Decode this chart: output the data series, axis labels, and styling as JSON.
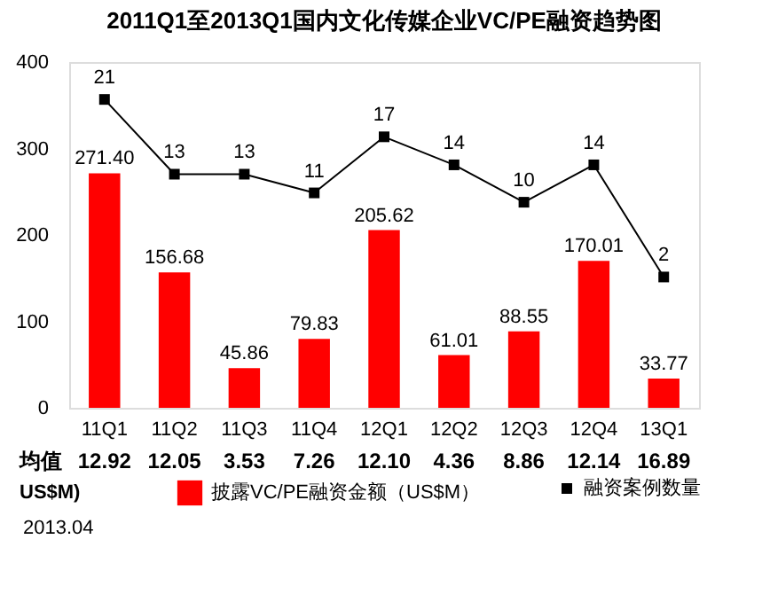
{
  "chart_data": {
    "type": "bar",
    "title": "2011Q1至2013Q1国内文化传媒企业VC/PE融资趋势图",
    "categories": [
      "11Q1",
      "11Q2",
      "11Q3",
      "11Q4",
      "12Q1",
      "12Q2",
      "12Q3",
      "12Q4",
      "13Q1"
    ],
    "series": [
      {
        "name": "披露VC/PE融资金额（US$M）",
        "color": "#ff0000",
        "values": [
          271.4,
          156.68,
          45.86,
          79.83,
          205.62,
          61.01,
          88.55,
          170.01,
          33.77
        ],
        "value_labels": [
          "271.40",
          "156.68",
          "45.86",
          "79.83",
          "205.62",
          "61.01",
          "88.55",
          "170.01",
          "33.77"
        ]
      },
      {
        "name": "融资案例数量",
        "type": "line",
        "axis": "y2",
        "color": "#000000",
        "marker": "square",
        "values": [
          21,
          13,
          13,
          11,
          17,
          14,
          10,
          14,
          2
        ],
        "value_labels": [
          "21",
          "13",
          "13",
          "11",
          "17",
          "14",
          "10",
          "14",
          "2"
        ]
      }
    ],
    "ylim": [
      0,
      400
    ],
    "yticks": [
      0,
      100,
      200,
      300,
      400
    ],
    "y2lim": [
      -12,
      25
    ],
    "grid": false,
    "legend": "bottom",
    "annotations": [
      "均值",
      "US$M)",
      "12.92",
      "12.05",
      "3.53",
      "7.26",
      "12.10",
      "4.36",
      "8.86",
      "12.14",
      "16.89",
      "2013.04"
    ]
  }
}
